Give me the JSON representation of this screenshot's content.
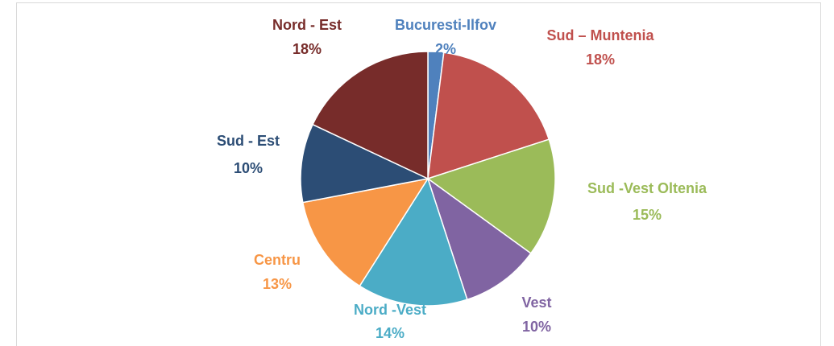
{
  "chart_data": {
    "type": "pie",
    "categories": [
      "Bucuresti-Ilfov",
      "Sud – Muntenia",
      "Sud -Vest Oltenia",
      "Vest",
      "Nord -Vest",
      "Centru",
      "Sud - Est",
      "Nord - Est"
    ],
    "values": [
      2,
      18,
      15,
      10,
      14,
      13,
      10,
      18
    ],
    "value_labels": [
      "2%",
      "18%",
      "15%",
      "10%",
      "14%",
      "13%",
      "10%",
      "18%"
    ],
    "colors": [
      "#4f81bd",
      "#c0504d",
      "#9bbb59",
      "#8064a2",
      "#4bacc6",
      "#f79646",
      "#2c4d75",
      "#772c2a"
    ]
  }
}
